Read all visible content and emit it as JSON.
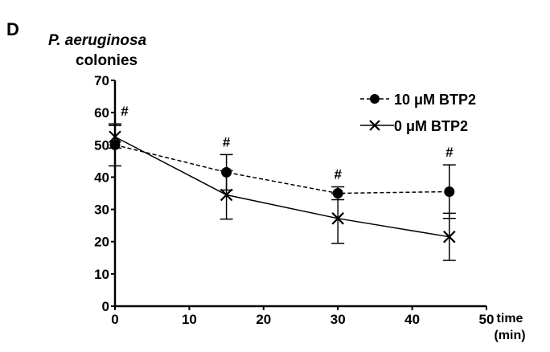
{
  "panel_label": "D",
  "chart_data": {
    "type": "line",
    "ylabel_line1": "P. aeruginosa",
    "ylabel_line2": "colonies",
    "xlabel_line1": "time",
    "xlabel_line2": "(min)",
    "xlim": [
      0,
      50
    ],
    "ylim": [
      0,
      70
    ],
    "xticks": [
      0,
      10,
      20,
      30,
      40,
      50
    ],
    "yticks": [
      0,
      10,
      20,
      30,
      40,
      50,
      60,
      70
    ],
    "x": [
      0,
      15,
      30,
      45
    ],
    "legend_position": "top-right",
    "grid": false,
    "series": [
      {
        "name": "10 μM BTP2",
        "marker": "circle",
        "line_style": "dashed",
        "color": "#000000",
        "values": [
          50,
          41.5,
          35,
          35.5
        ],
        "errors": [
          6.5,
          5.5,
          2,
          8.3
        ]
      },
      {
        "name": "0 μM BTP2",
        "marker": "x",
        "line_style": "solid",
        "color": "#000000",
        "values": [
          52.5,
          34.5,
          27.2,
          21.5
        ],
        "errors": [
          3.5,
          7.5,
          7.7,
          7.3
        ]
      }
    ],
    "annotations": [
      {
        "x": 0,
        "text": "#"
      },
      {
        "x": 15,
        "text": "#"
      },
      {
        "x": 30,
        "text": "#"
      },
      {
        "x": 45,
        "text": "#"
      }
    ]
  }
}
